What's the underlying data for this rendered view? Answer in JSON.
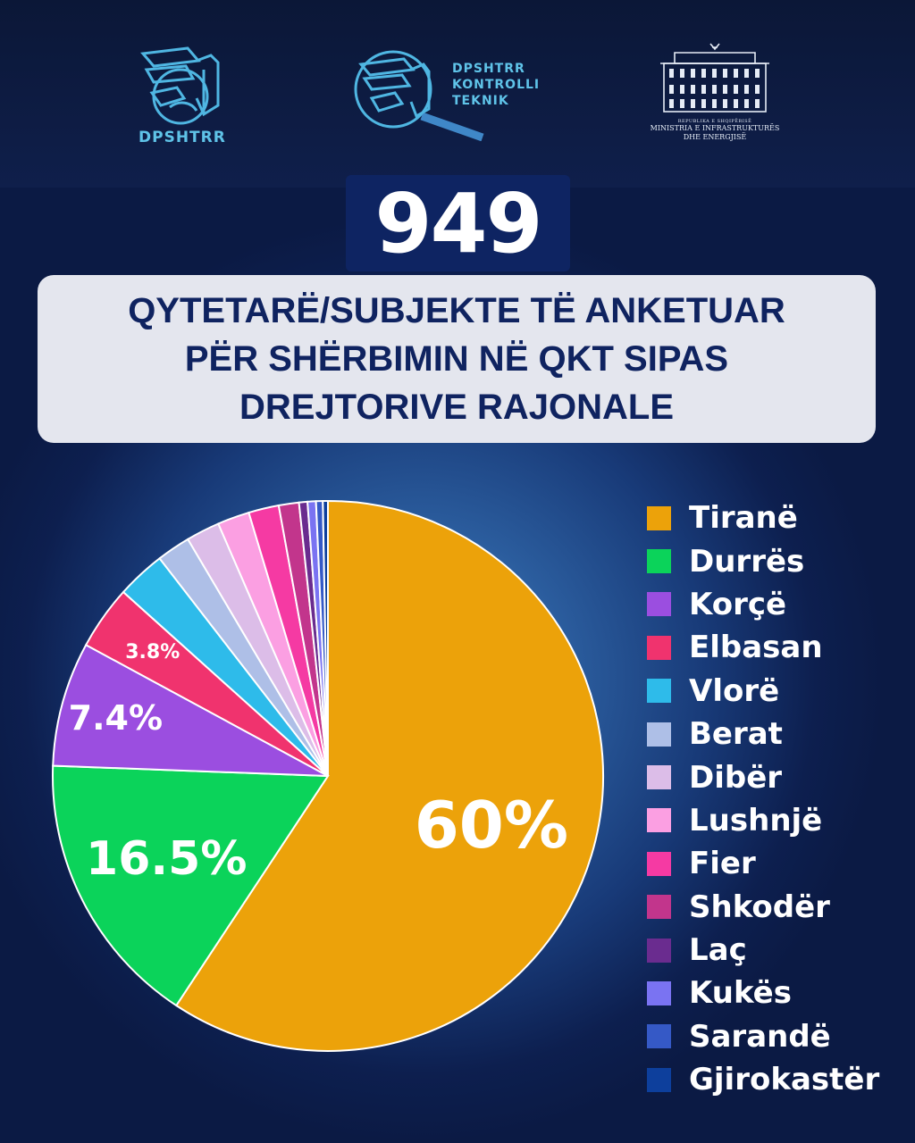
{
  "logos": {
    "left_text": "DPSHTRR",
    "center_lines": [
      "DPSHTRR",
      "KONTROLLI",
      "TEKNIK"
    ],
    "right_small": "REPUBLIKA E SHQIPËRISË",
    "right_lines": [
      "MINISTRIA E INFRASTRUKTURËS",
      "DHE ENERGJISË"
    ]
  },
  "total": "949",
  "title_lines": [
    "QYTETARË/SUBJEKTE TË ANKETUAR",
    "PËR SHËRBIMIN NË QKT SIPAS",
    "DREJTORIVE RAJONALE"
  ],
  "chart_data": {
    "type": "pie",
    "slices": [
      {
        "label": "Tiranë",
        "value": 60,
        "color": "#eca20a",
        "display": "60%"
      },
      {
        "label": "Durrës",
        "value": 16.5,
        "color": "#0bd35a",
        "display": "16.5%"
      },
      {
        "label": "Korçë",
        "value": 7.4,
        "color": "#9b4ee0",
        "display": "7.4%"
      },
      {
        "label": "Elbasan",
        "value": 3.8,
        "color": "#f0336e",
        "display": "3.8%"
      },
      {
        "label": "Vlorë",
        "value": 2.9,
        "color": "#2ebbea",
        "display": ""
      },
      {
        "label": "Berat",
        "value": 2.0,
        "color": "#aebfe7",
        "display": ""
      },
      {
        "label": "Dibër",
        "value": 2.0,
        "color": "#dcbde8",
        "display": ""
      },
      {
        "label": "Lushnjë",
        "value": 1.9,
        "color": "#fb9fe2",
        "display": ""
      },
      {
        "label": "Fier",
        "value": 1.8,
        "color": "#f53aa3",
        "display": ""
      },
      {
        "label": "Shkodër",
        "value": 1.2,
        "color": "#c2358c",
        "display": ""
      },
      {
        "label": "Laç",
        "value": 0.5,
        "color": "#6a2c8f",
        "display": ""
      },
      {
        "label": "Kukës",
        "value": 0.5,
        "color": "#7a73f2",
        "display": ""
      },
      {
        "label": "Sarandë",
        "value": 0.4,
        "color": "#3559c6",
        "display": ""
      },
      {
        "label": "Gjirokastër",
        "value": 0.3,
        "color": "#0d3f9c",
        "display": ""
      }
    ]
  }
}
